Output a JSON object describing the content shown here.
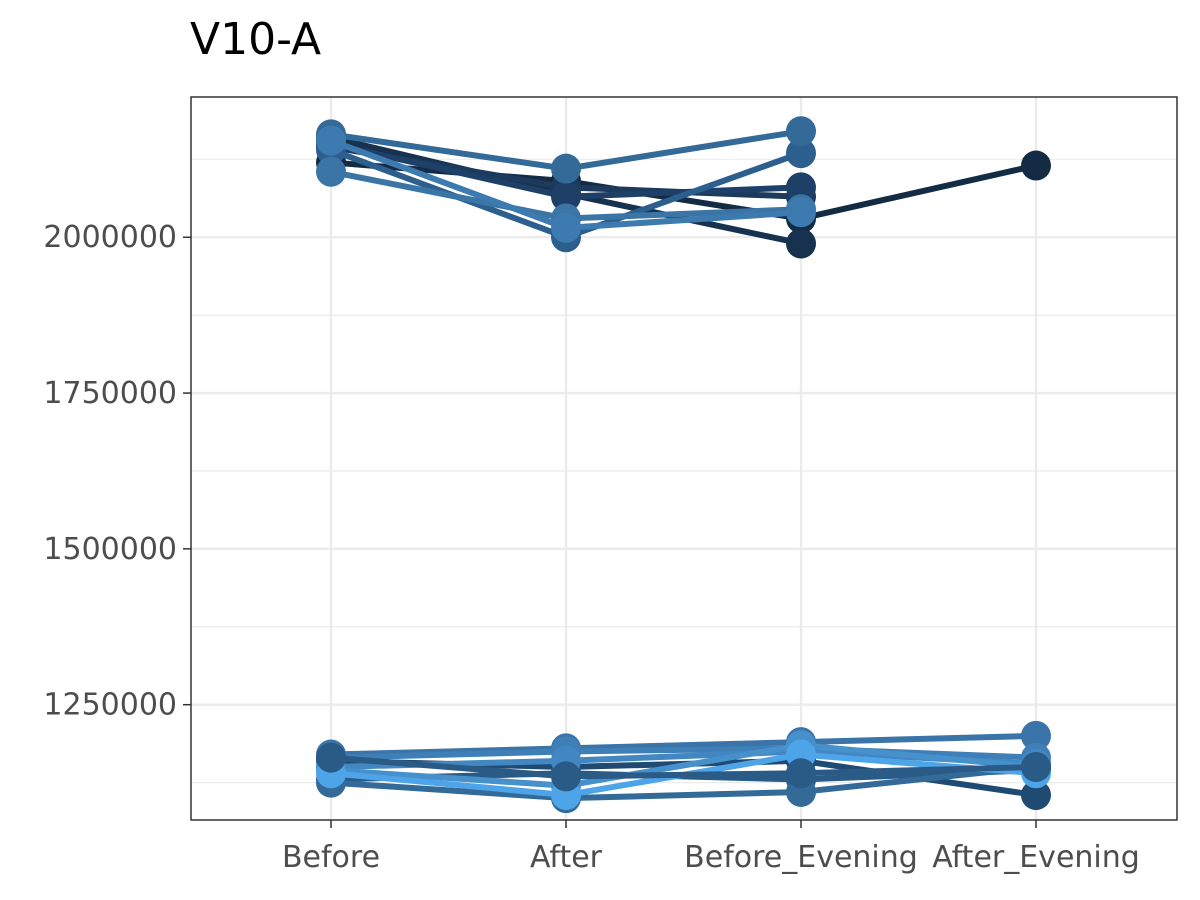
{
  "chart_data": {
    "type": "line",
    "title": "V10-A",
    "xlabel": "",
    "ylabel": "",
    "categories": [
      "Before",
      "After",
      "Before_Evening",
      "After_Evening"
    ],
    "yticks": [
      "1250000",
      "1500000",
      "1750000",
      "2000000"
    ],
    "ytick_values": [
      1250000,
      1500000,
      1750000,
      2000000
    ],
    "ylim": [
      1065000,
      2225000
    ],
    "grid": true,
    "legend": "none",
    "series": [
      {
        "color": "#132b43",
        "values": [
          2120000,
          2090000,
          2030000,
          2115000
        ]
      },
      {
        "color": "#16324f",
        "values": [
          2160000,
          2070000,
          1990000,
          null
        ]
      },
      {
        "color": "#1b3a5c",
        "values": [
          2145000,
          2080000,
          2065000,
          null
        ]
      },
      {
        "color": "#1e4068",
        "values": [
          2150000,
          2065000,
          2080000,
          null
        ]
      },
      {
        "color": "#2c5f8d",
        "values": [
          2140000,
          2000000,
          2135000,
          null
        ]
      },
      {
        "color": "#336a98",
        "values": [
          2165000,
          2110000,
          2170000,
          null
        ]
      },
      {
        "color": "#3a75a6",
        "values": [
          2105000,
          2030000,
          2045000,
          null
        ]
      },
      {
        "color": "#3d7ab0",
        "values": [
          2155000,
          2015000,
          2040000,
          null
        ]
      },
      {
        "color": "#1f4a72",
        "values": [
          1160000,
          1150000,
          1160000,
          1105000
        ]
      },
      {
        "color": "#2a5a86",
        "values": [
          1130000,
          1140000,
          1130000,
          1145000
        ]
      },
      {
        "color": "#336a98",
        "values": [
          1125000,
          1100000,
          1110000,
          1150000
        ]
      },
      {
        "color": "#3a74a8",
        "values": [
          1170000,
          1180000,
          1190000,
          1200000
        ]
      },
      {
        "color": "#3e7fb8",
        "values": [
          1165000,
          1175000,
          1180000,
          1165000
        ]
      },
      {
        "color": "#4287c2",
        "values": [
          1150000,
          1160000,
          1175000,
          1155000
        ]
      },
      {
        "color": "#4690cc",
        "values": [
          1145000,
          1120000,
          1185000,
          1150000
        ]
      },
      {
        "color": "#4ea4e8",
        "values": [
          1140000,
          1105000,
          1170000,
          1140000
        ]
      },
      {
        "color": "#2a5a86",
        "values": [
          1165000,
          1135000,
          1140000,
          1150000
        ]
      }
    ]
  }
}
